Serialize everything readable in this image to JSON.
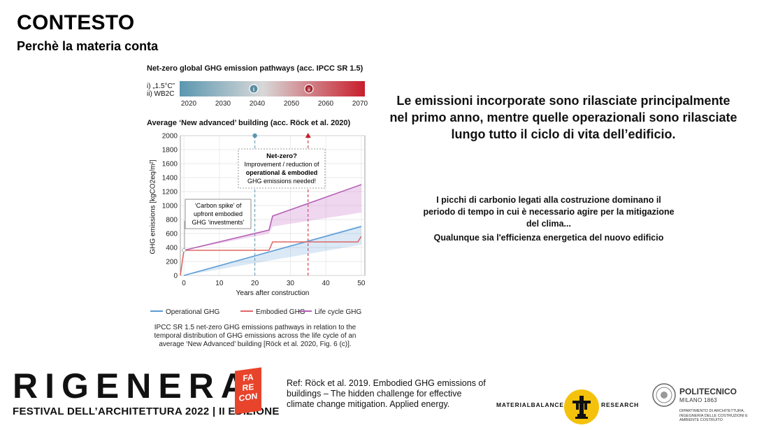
{
  "slide": {
    "title": "CONTESTO",
    "subtitle": "Perchè la materia conta"
  },
  "figure": {
    "pathways_title": "Net-zero global GHG emission pathways (acc. IPCC SR 1.5)",
    "pathway_label_1": "i) „1.5°C”",
    "pathway_label_2": "ii) WB2C",
    "pathway_markers": [
      "i",
      "ii"
    ],
    "gradient_colors": [
      "#5b97b0",
      "#d8d8d8",
      "#c81e2c"
    ],
    "year_ticks": [
      "2020",
      "2030",
      "2040",
      "2050",
      "2060",
      "2070"
    ],
    "chart_title": "Average ‘New advanced’ building (acc. Röck et al. 2020)",
    "ylabel": "GHG emissions [kgCO2eq/m²]",
    "xlabel": "Years after construction",
    "netzero_box": {
      "line1": "Net-zero?",
      "line2": "Improvement / reduction of",
      "line3": "operational & embodied",
      "line4": "GHG emissions needed!"
    },
    "spike_box": {
      "line1": "‘Carbon spike’ of",
      "line2": "upfront embodied",
      "line3": "GHG ‘investments’"
    },
    "caption": "IPCC SR 1.5 net-zero GHG emissions pathways in relation to the temporal distribution of GHG emissions across the life cycle of an average ‘New Advanced’ building [Röck et al. 2020, Fig. 6 (c)]."
  },
  "chart_data": {
    "type": "line",
    "title": "Average ‘New advanced’ building (acc. Röck et al. 2020)",
    "xlabel": "Years after construction",
    "ylabel": "GHG emissions [kgCO2eq/m²]",
    "xlim": [
      -1,
      51
    ],
    "ylim": [
      0,
      2000
    ],
    "xticks": [
      0,
      10,
      20,
      30,
      40,
      50
    ],
    "yticks": [
      0,
      200,
      400,
      600,
      800,
      1000,
      1200,
      1400,
      1600,
      1800,
      2000
    ],
    "grid": true,
    "legend_position": "bottom",
    "vertical_markers": [
      {
        "x": 20,
        "color": "#5b97b0"
      },
      {
        "x": 35,
        "color": "#c81e2c"
      }
    ],
    "series": [
      {
        "name": "Operational GHG",
        "color": "#5b9bd5",
        "x": [
          0,
          50
        ],
        "y": [
          0,
          700
        ],
        "band_x": [
          0,
          50
        ],
        "band_low": [
          0,
          440
        ],
        "band_high": [
          0,
          720
        ]
      },
      {
        "name": "Embodied GHG",
        "color": "#e06666",
        "x": [
          -1,
          0,
          24,
          25,
          49,
          50
        ],
        "y": [
          0,
          360,
          360,
          480,
          480,
          560
        ]
      },
      {
        "name": "Life cycle GHG",
        "color": "#b35fb3",
        "x": [
          0,
          24,
          25,
          50
        ],
        "y": [
          360,
          650,
          850,
          1300
        ],
        "band_x": [
          0,
          24,
          25,
          50
        ],
        "band_low": [
          360,
          600,
          700,
          900
        ],
        "band_high": [
          360,
          650,
          850,
          1300
        ]
      }
    ]
  },
  "main_text": "Le emissioni incorporate sono rilasciate principalmente nel primo anno, mentre quelle operazionali sono rilasciate lungo tutto il ciclo di vita dell’edificio.",
  "sub_text_1": "I picchi di carbonio legati alla costruzione dominano il periodo di tempo in cui è necessario agire per la mitigazione del clima...",
  "sub_text_2": "Qualunque sia l'efficienza energetica del nuovo edificio",
  "footer": {
    "logo_text": "RIGENERA",
    "festival_text": "FESTIVAL DELL’ARCHITETTURA 2022 | II EDIZIONE",
    "fare_con": [
      "FA",
      "RE",
      "CON"
    ],
    "reference": "Ref: Röck et al. 2019. Embodied GHG emissions of buildings – The hidden challenge for effective climate change mitigation. Applied energy.",
    "materialbalance_left": "MATERIALBALANCE",
    "materialbalance_right": "RESEARCH",
    "polimi_name": "POLITECNICO",
    "polimi_city": "MILANO 1863",
    "polimi_dept": "DIPARTIMENTO DI ARCHITETTURA, INGEGNERIA DELLE COSTRUZIONI E AMBIENTE COSTRUITO"
  },
  "colors": {
    "accent_red": "#e8442c",
    "mb_yellow": "#f4c20d"
  }
}
